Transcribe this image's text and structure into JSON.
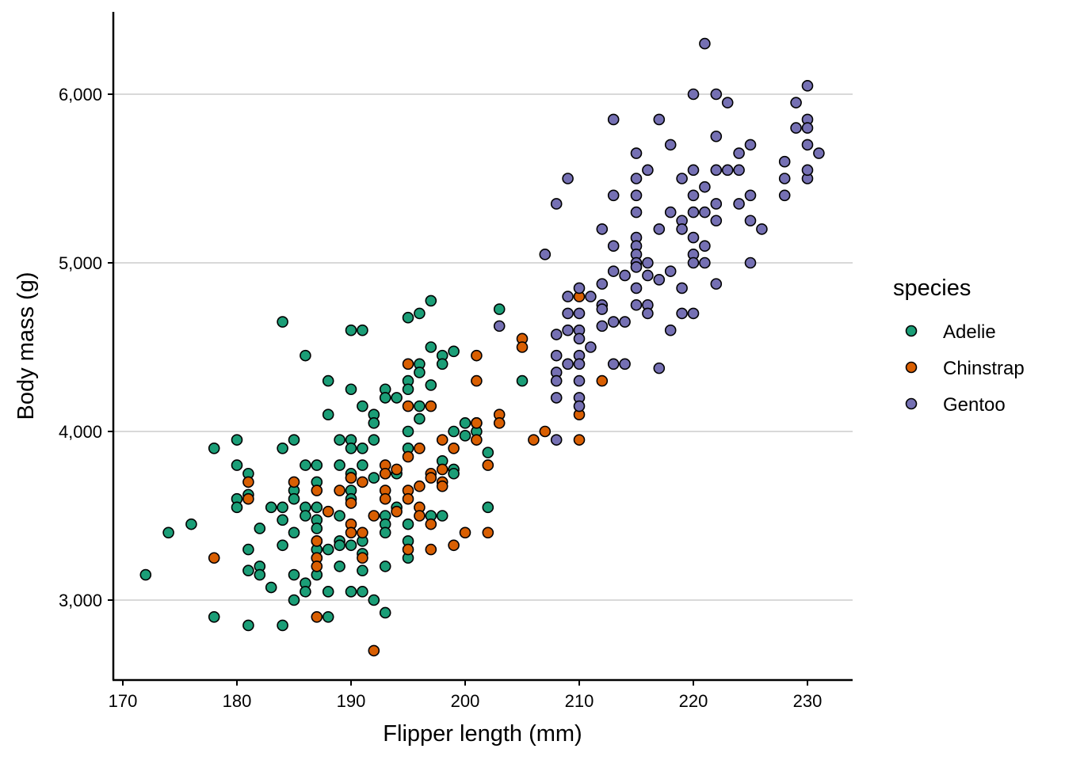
{
  "chart_data": {
    "type": "scatter",
    "title": "",
    "xlabel": "Flipper length (mm)",
    "ylabel": "Body mass (g)",
    "xlim": [
      169.5,
      233.5
    ],
    "ylim": [
      2550,
      6450
    ],
    "xticks": [
      170,
      180,
      190,
      200,
      210,
      220,
      230
    ],
    "xtick_labels": [
      "170",
      "180",
      "190",
      "200",
      "210",
      "220",
      "230"
    ],
    "yticks": [
      3000,
      4000,
      5000,
      6000
    ],
    "ytick_labels": [
      "3,000",
      "4,000",
      "5,000",
      "6,000"
    ],
    "grid": "horizontal major",
    "legend": {
      "title": "species",
      "placement": "right"
    },
    "series": [
      {
        "name": "Adelie",
        "color": "#1B9E77",
        "points": [
          [
            172,
            3150
          ],
          [
            174,
            3400
          ],
          [
            176,
            3450
          ],
          [
            178,
            3900
          ],
          [
            178,
            2900
          ],
          [
            180,
            3950
          ],
          [
            180,
            3800
          ],
          [
            180,
            3600
          ],
          [
            180,
            3550
          ],
          [
            181,
            3750
          ],
          [
            181,
            3625
          ],
          [
            181,
            3300
          ],
          [
            181,
            3175
          ],
          [
            181,
            2850
          ],
          [
            182,
            3425
          ],
          [
            182,
            3200
          ],
          [
            182,
            3150
          ],
          [
            183,
            3550
          ],
          [
            183,
            3075
          ],
          [
            184,
            4650
          ],
          [
            184,
            3900
          ],
          [
            184,
            3550
          ],
          [
            184,
            3475
          ],
          [
            184,
            3325
          ],
          [
            184,
            2850
          ],
          [
            185,
            3950
          ],
          [
            185,
            3650
          ],
          [
            185,
            3600
          ],
          [
            185,
            3400
          ],
          [
            185,
            3150
          ],
          [
            185,
            3000
          ],
          [
            186,
            4450
          ],
          [
            186,
            3800
          ],
          [
            186,
            3550
          ],
          [
            186,
            3500
          ],
          [
            186,
            3100
          ],
          [
            186,
            3050
          ],
          [
            187,
            3800
          ],
          [
            187,
            3700
          ],
          [
            187,
            3550
          ],
          [
            187,
            3475
          ],
          [
            187,
            3425
          ],
          [
            187,
            3350
          ],
          [
            187,
            3300
          ],
          [
            187,
            3250
          ],
          [
            187,
            3150
          ],
          [
            188,
            4300
          ],
          [
            188,
            4100
          ],
          [
            188,
            3300
          ],
          [
            188,
            3050
          ],
          [
            188,
            2900
          ],
          [
            189,
            3950
          ],
          [
            189,
            3800
          ],
          [
            189,
            3500
          ],
          [
            189,
            3350
          ],
          [
            189,
            3325
          ],
          [
            189,
            3200
          ],
          [
            190,
            4600
          ],
          [
            190,
            4250
          ],
          [
            190,
            3950
          ],
          [
            190,
            3900
          ],
          [
            190,
            3750
          ],
          [
            190,
            3725
          ],
          [
            190,
            3650
          ],
          [
            190,
            3600
          ],
          [
            190,
            3325
          ],
          [
            190,
            3050
          ],
          [
            191,
            4600
          ],
          [
            191,
            4150
          ],
          [
            191,
            3900
          ],
          [
            191,
            3800
          ],
          [
            191,
            3350
          ],
          [
            191,
            3275
          ],
          [
            191,
            3175
          ],
          [
            191,
            3050
          ],
          [
            192,
            4100
          ],
          [
            192,
            4050
          ],
          [
            192,
            3950
          ],
          [
            192,
            3725
          ],
          [
            192,
            3000
          ],
          [
            193,
            4250
          ],
          [
            193,
            4200
          ],
          [
            193,
            3750
          ],
          [
            193,
            3500
          ],
          [
            193,
            3450
          ],
          [
            193,
            3400
          ],
          [
            193,
            3200
          ],
          [
            193,
            2925
          ],
          [
            194,
            4200
          ],
          [
            194,
            3750
          ],
          [
            194,
            3550
          ],
          [
            195,
            4675
          ],
          [
            195,
            4300
          ],
          [
            195,
            4250
          ],
          [
            195,
            4000
          ],
          [
            195,
            3900
          ],
          [
            195,
            3450
          ],
          [
            195,
            3350
          ],
          [
            195,
            3250
          ],
          [
            196,
            4700
          ],
          [
            196,
            4400
          ],
          [
            196,
            4350
          ],
          [
            196,
            4150
          ],
          [
            196,
            4075
          ],
          [
            197,
            4775
          ],
          [
            197,
            4500
          ],
          [
            197,
            4275
          ],
          [
            197,
            3500
          ],
          [
            198,
            4450
          ],
          [
            198,
            4400
          ],
          [
            198,
            3825
          ],
          [
            198,
            3500
          ],
          [
            199,
            4475
          ],
          [
            199,
            4000
          ],
          [
            199,
            3775
          ],
          [
            199,
            3750
          ],
          [
            200,
            4050
          ],
          [
            200,
            3975
          ],
          [
            201,
            4050
          ],
          [
            201,
            4000
          ],
          [
            202,
            3875
          ],
          [
            202,
            3550
          ],
          [
            203,
            4725
          ],
          [
            205,
            4300
          ]
        ]
      },
      {
        "name": "Chinstrap",
        "color": "#D95F02",
        "points": [
          [
            178,
            3250
          ],
          [
            181,
            3700
          ],
          [
            181,
            3600
          ],
          [
            185,
            3700
          ],
          [
            187,
            3650
          ],
          [
            187,
            3350
          ],
          [
            187,
            3250
          ],
          [
            187,
            3200
          ],
          [
            187,
            2900
          ],
          [
            188,
            3525
          ],
          [
            189,
            3650
          ],
          [
            190,
            3725
          ],
          [
            190,
            3575
          ],
          [
            190,
            3450
          ],
          [
            190,
            3400
          ],
          [
            191,
            3700
          ],
          [
            191,
            3400
          ],
          [
            191,
            3250
          ],
          [
            192,
            3500
          ],
          [
            192,
            2700
          ],
          [
            193,
            3800
          ],
          [
            193,
            3750
          ],
          [
            193,
            3650
          ],
          [
            193,
            3600
          ],
          [
            194,
            3775
          ],
          [
            194,
            3525
          ],
          [
            195,
            4400
          ],
          [
            195,
            4150
          ],
          [
            195,
            3850
          ],
          [
            195,
            3650
          ],
          [
            195,
            3600
          ],
          [
            195,
            3300
          ],
          [
            196,
            3900
          ],
          [
            196,
            3675
          ],
          [
            196,
            3550
          ],
          [
            196,
            3500
          ],
          [
            197,
            4150
          ],
          [
            197,
            3750
          ],
          [
            197,
            3725
          ],
          [
            197,
            3450
          ],
          [
            197,
            3300
          ],
          [
            198,
            3950
          ],
          [
            198,
            3775
          ],
          [
            198,
            3700
          ],
          [
            198,
            3675
          ],
          [
            199,
            3900
          ],
          [
            199,
            3325
          ],
          [
            200,
            3400
          ],
          [
            201,
            4450
          ],
          [
            201,
            4300
          ],
          [
            201,
            4050
          ],
          [
            201,
            3950
          ],
          [
            202,
            3800
          ],
          [
            202,
            3400
          ],
          [
            203,
            4100
          ],
          [
            203,
            4050
          ],
          [
            205,
            4550
          ],
          [
            205,
            4500
          ],
          [
            206,
            3950
          ],
          [
            207,
            4000
          ],
          [
            210,
            4800
          ],
          [
            210,
            4100
          ],
          [
            210,
            3950
          ],
          [
            212,
            4300
          ]
        ]
      },
      {
        "name": "Gentoo",
        "color": "#7570B3",
        "points": [
          [
            221,
            6300
          ],
          [
            220,
            6000
          ],
          [
            222,
            6000
          ],
          [
            223,
            5950
          ],
          [
            229,
            5950
          ],
          [
            230,
            6050
          ],
          [
            213,
            5850
          ],
          [
            217,
            5850
          ],
          [
            230,
            5850
          ],
          [
            229,
            5800
          ],
          [
            230,
            5800
          ],
          [
            218,
            5700
          ],
          [
            225,
            5700
          ],
          [
            230,
            5700
          ],
          [
            222,
            5750
          ],
          [
            215,
            5650
          ],
          [
            224,
            5650
          ],
          [
            231,
            5650
          ],
          [
            228,
            5600
          ],
          [
            209,
            5500
          ],
          [
            215,
            5500
          ],
          [
            219,
            5500
          ],
          [
            228,
            5500
          ],
          [
            230,
            5500
          ],
          [
            230,
            5550
          ],
          [
            216,
            5550
          ],
          [
            220,
            5550
          ],
          [
            222,
            5550
          ],
          [
            223,
            5550
          ],
          [
            224,
            5550
          ],
          [
            221,
            5450
          ],
          [
            213,
            5400
          ],
          [
            215,
            5400
          ],
          [
            220,
            5400
          ],
          [
            225,
            5400
          ],
          [
            228,
            5400
          ],
          [
            208,
            5350
          ],
          [
            222,
            5350
          ],
          [
            224,
            5350
          ],
          [
            215,
            5300
          ],
          [
            218,
            5300
          ],
          [
            220,
            5300
          ],
          [
            221,
            5300
          ],
          [
            219,
            5250
          ],
          [
            222,
            5250
          ],
          [
            225,
            5250
          ],
          [
            212,
            5200
          ],
          [
            217,
            5200
          ],
          [
            219,
            5200
          ],
          [
            226,
            5200
          ],
          [
            220,
            5150
          ],
          [
            215,
            5150
          ],
          [
            213,
            5100
          ],
          [
            215,
            5100
          ],
          [
            221,
            5100
          ],
          [
            207,
            5050
          ],
          [
            215,
            5050
          ],
          [
            220,
            5050
          ],
          [
            215,
            5000
          ],
          [
            216,
            5000
          ],
          [
            220,
            5000
          ],
          [
            221,
            5000
          ],
          [
            225,
            5000
          ],
          [
            215,
            4975
          ],
          [
            213,
            4950
          ],
          [
            218,
            4950
          ],
          [
            214,
            4925
          ],
          [
            216,
            4925
          ],
          [
            210,
            4850
          ],
          [
            212,
            4875
          ],
          [
            215,
            4850
          ],
          [
            219,
            4850
          ],
          [
            222,
            4875
          ],
          [
            209,
            4800
          ],
          [
            211,
            4800
          ],
          [
            217,
            4900
          ],
          [
            212,
            4750
          ],
          [
            215,
            4750
          ],
          [
            216,
            4750
          ],
          [
            212,
            4725
          ],
          [
            209,
            4700
          ],
          [
            210,
            4700
          ],
          [
            216,
            4700
          ],
          [
            219,
            4700
          ],
          [
            220,
            4700
          ],
          [
            213,
            4650
          ],
          [
            214,
            4650
          ],
          [
            212,
            4625
          ],
          [
            208,
            4575
          ],
          [
            209,
            4600
          ],
          [
            210,
            4600
          ],
          [
            218,
            4600
          ],
          [
            203,
            4625
          ],
          [
            210,
            4550
          ],
          [
            211,
            4500
          ],
          [
            208,
            4450
          ],
          [
            210,
            4450
          ],
          [
            209,
            4400
          ],
          [
            210,
            4400
          ],
          [
            213,
            4400
          ],
          [
            214,
            4400
          ],
          [
            217,
            4375
          ],
          [
            208,
            4350
          ],
          [
            208,
            4300
          ],
          [
            210,
            4300
          ],
          [
            208,
            4200
          ],
          [
            210,
            4200
          ],
          [
            210,
            4150
          ],
          [
            208,
            3950
          ]
        ]
      }
    ]
  }
}
